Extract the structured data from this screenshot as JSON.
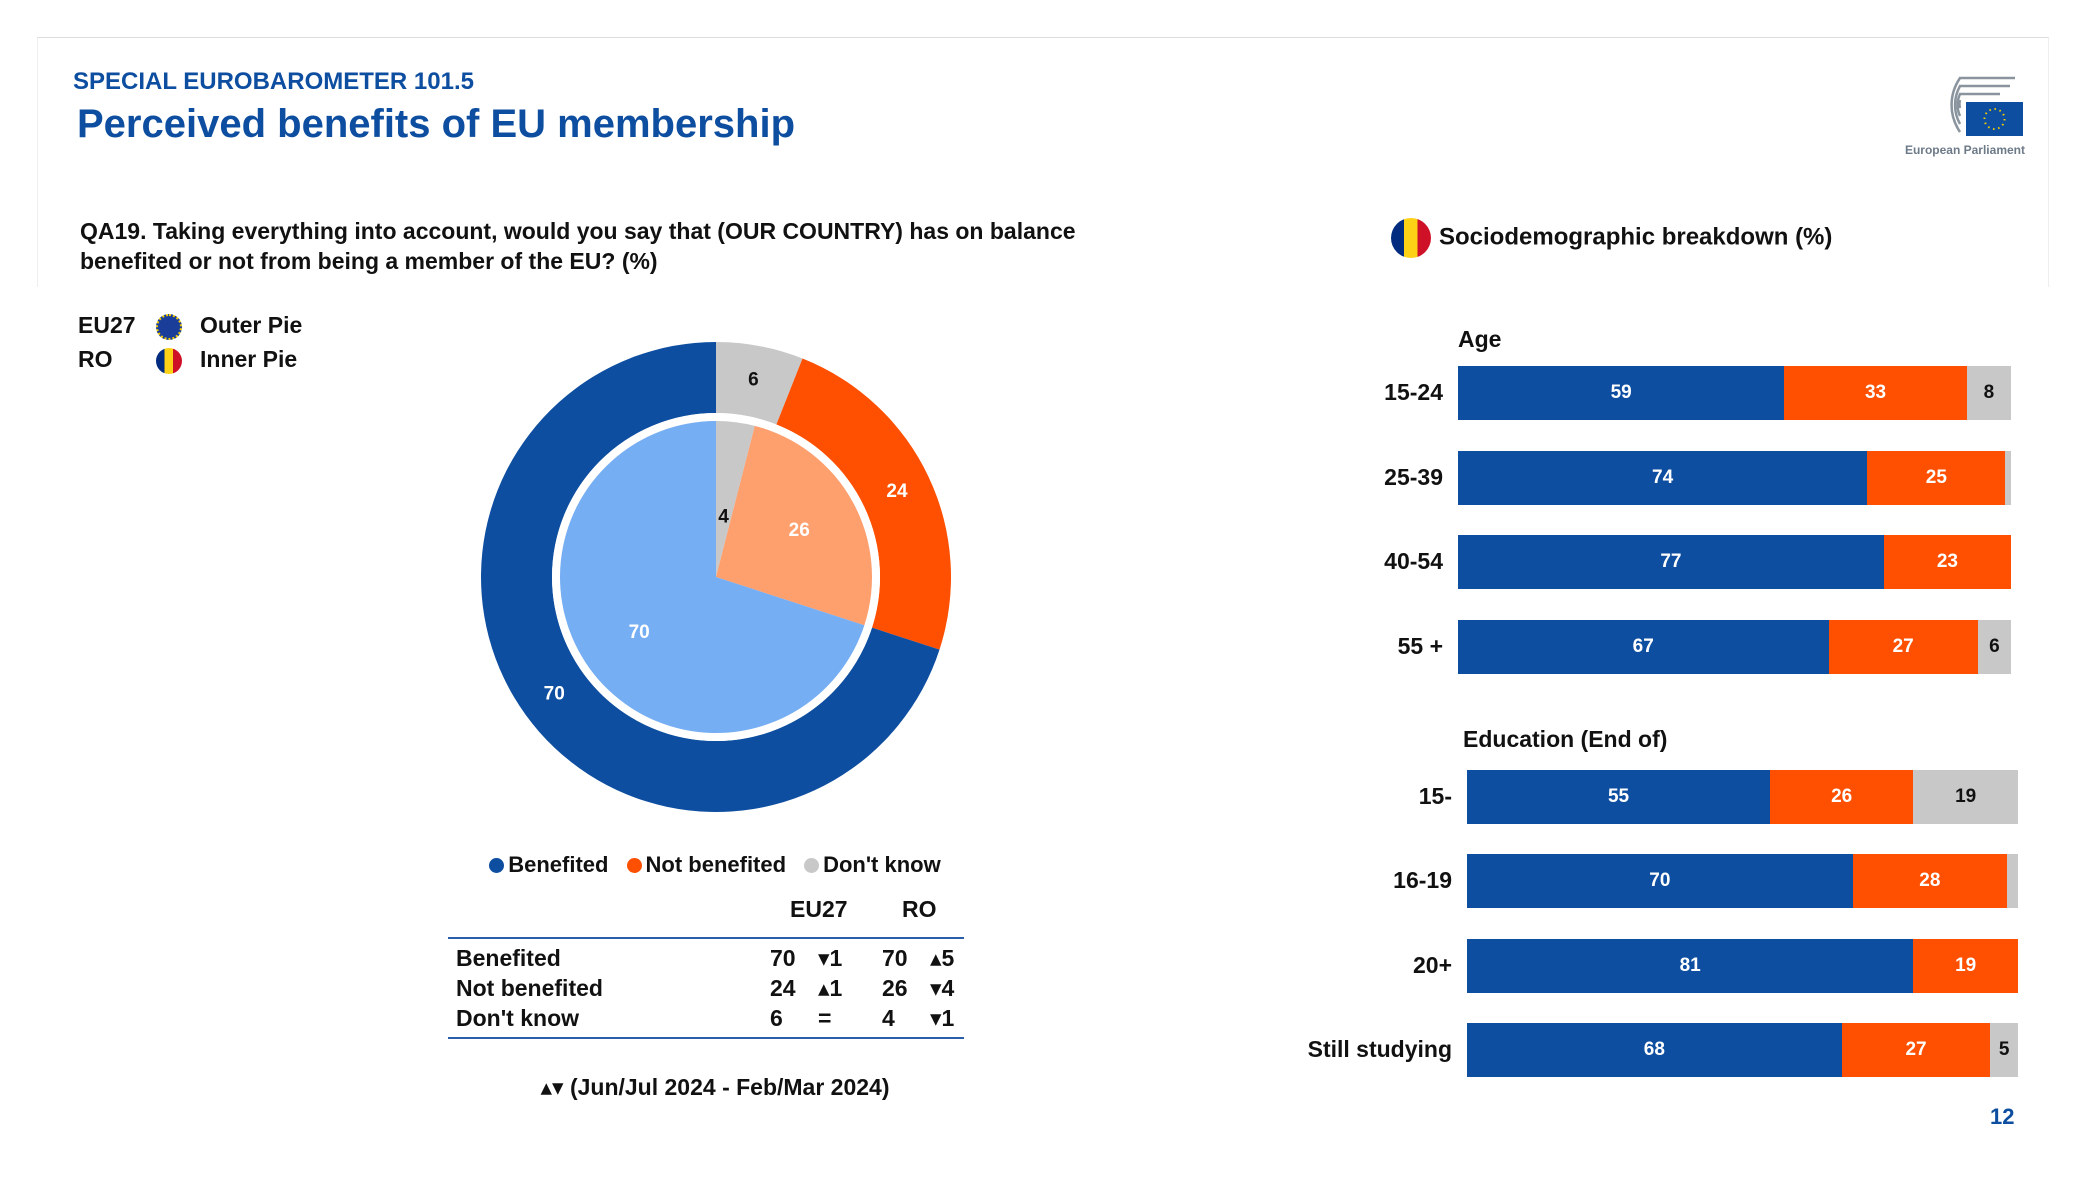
{
  "header": {
    "subtitle": "SPECIAL EUROBAROMETER 101.5",
    "title": "Perceived benefits of EU membership",
    "logo_text": "European Parliament"
  },
  "question": "QA19. Taking everything into account, would you say that (OUR COUNTRY) has on balance benefited or not from being a member of the EU? (%)",
  "pie_legend": [
    {
      "code": "EU27",
      "label": "Outer Pie",
      "icon": "eu-flag-icon"
    },
    {
      "code": "RO",
      "label": "Inner Pie",
      "icon": "romania-flag-icon"
    }
  ],
  "colors": {
    "benefited": "#0d4ea0",
    "not_benefited": "#fe5000",
    "dont_know": "#c8c8c8",
    "benefited_light": "#76aef3",
    "not_benefited_light": "#fe9f6e",
    "dont_know_light": "#c8c8c8"
  },
  "legend": [
    "Benefited",
    "Not benefited",
    "Don't know"
  ],
  "table": {
    "headers": [
      "EU27",
      "RO"
    ],
    "rows": [
      {
        "label": "Benefited",
        "eu": "70",
        "eu_diff": "▾1",
        "ro": "70",
        "ro_diff": "▴5"
      },
      {
        "label": "Not benefited",
        "eu": "24",
        "eu_diff": "▴1",
        "ro": "26",
        "ro_diff": "▾4"
      },
      {
        "label": "Don't know",
        "eu": "6",
        "eu_diff": "=",
        "ro": "4",
        "ro_diff": "▾1"
      }
    ]
  },
  "footnote": "▴▾ (Jun/Jul 2024 - Feb/Mar 2024)",
  "right_heading": "Sociodemographic breakdown (%)",
  "page_number": "12",
  "chart_data": [
    {
      "type": "pie",
      "title": "EU27 (Outer Pie)",
      "categories": [
        "Don't know",
        "Not benefited",
        "Benefited"
      ],
      "values": [
        6,
        24,
        70
      ]
    },
    {
      "type": "pie",
      "title": "RO (Inner Pie)",
      "categories": [
        "Don't know",
        "Not benefited",
        "Benefited"
      ],
      "values": [
        4,
        26,
        70
      ]
    },
    {
      "type": "bar",
      "stacked": true,
      "orientation": "horizontal",
      "title": "Age",
      "categories": [
        "15-24",
        "25-39",
        "40-54",
        "55 +"
      ],
      "series": [
        {
          "name": "Benefited",
          "values": [
            59,
            74,
            77,
            67
          ]
        },
        {
          "name": "Not benefited",
          "values": [
            33,
            25,
            23,
            27
          ]
        },
        {
          "name": "Don't know",
          "values": [
            8,
            1,
            0,
            6
          ]
        }
      ],
      "labels_shown": [
        [
          "59",
          "33",
          "8"
        ],
        [
          "74",
          "25",
          ""
        ],
        [
          "77",
          "23",
          ""
        ],
        [
          "67",
          "27",
          "6"
        ]
      ]
    },
    {
      "type": "bar",
      "stacked": true,
      "orientation": "horizontal",
      "title": "Education (End of)",
      "categories": [
        "15-",
        "16-19",
        "20+",
        "Still studying"
      ],
      "series": [
        {
          "name": "Benefited",
          "values": [
            55,
            70,
            81,
            68
          ]
        },
        {
          "name": "Not benefited",
          "values": [
            26,
            28,
            19,
            27
          ]
        },
        {
          "name": "Don't know",
          "values": [
            19,
            2,
            0,
            5
          ]
        }
      ],
      "labels_shown": [
        [
          "55",
          "26",
          "19"
        ],
        [
          "70",
          "28",
          ""
        ],
        [
          "81",
          "19",
          ""
        ],
        [
          "68",
          "27",
          "5"
        ]
      ]
    }
  ]
}
